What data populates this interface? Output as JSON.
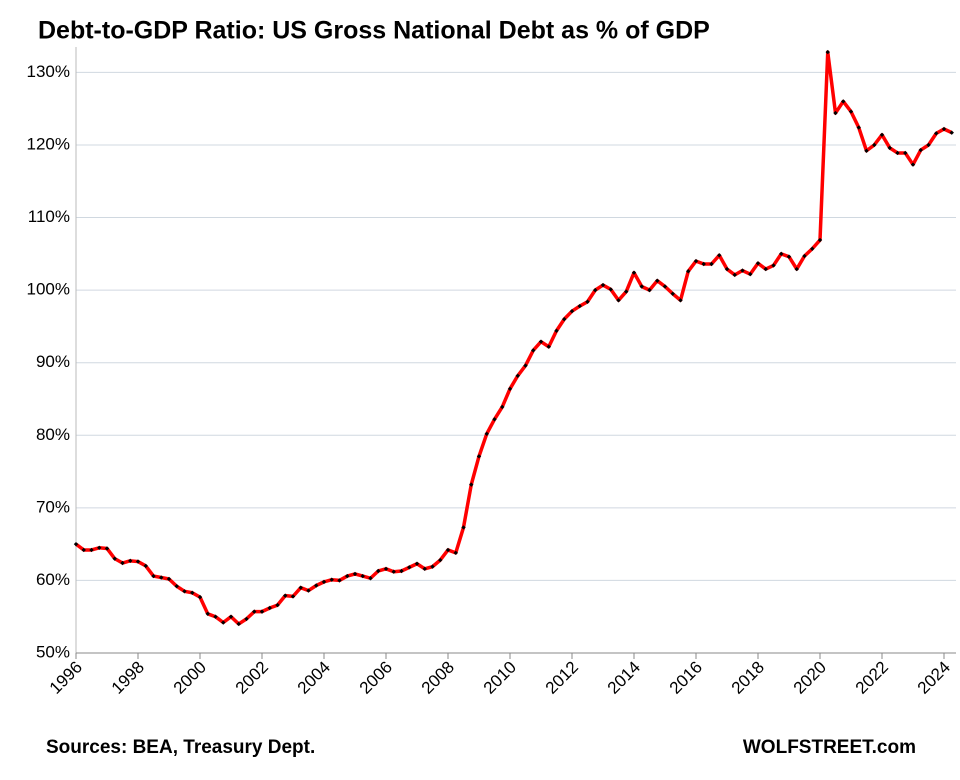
{
  "chart_data": {
    "type": "line",
    "title": "Debt-to-GDP Ratio: US Gross National Debt as % of GDP",
    "source": "Sources: BEA, Treasury Dept.",
    "credit": "WOLFSTREET.com",
    "color": "#ff0000",
    "marker_color": "#000000",
    "grid": true,
    "categories": [
      "1996",
      null,
      null,
      null,
      null,
      null,
      null,
      null,
      "1998",
      null,
      null,
      null,
      null,
      null,
      null,
      null,
      "2000",
      null,
      null,
      null,
      null,
      null,
      null,
      null,
      "2002",
      null,
      null,
      null,
      null,
      null,
      null,
      null,
      "2004",
      null,
      null,
      null,
      null,
      null,
      null,
      null,
      "2006",
      null,
      null,
      null,
      null,
      null,
      null,
      null,
      "2008",
      null,
      null,
      null,
      null,
      null,
      null,
      null,
      "2010",
      null,
      null,
      null,
      null,
      null,
      null,
      null,
      "2012",
      null,
      null,
      null,
      null,
      null,
      null,
      null,
      "2014",
      null,
      null,
      null,
      null,
      null,
      null,
      null,
      "2016",
      null,
      null,
      null,
      null,
      null,
      null,
      null,
      "2018",
      null,
      null,
      null,
      null,
      null,
      null,
      null,
      "2020",
      null,
      null,
      null,
      null,
      null,
      null,
      null,
      "2022",
      null,
      null,
      null,
      null,
      null,
      null,
      null,
      "2024",
      null
    ],
    "values": [
      65.0,
      64.2,
      64.2,
      64.5,
      64.4,
      63.0,
      62.4,
      62.7,
      62.6,
      62.0,
      60.6,
      60.4,
      60.2,
      59.2,
      58.5,
      58.3,
      57.7,
      55.4,
      55.0,
      54.2,
      55.0,
      54.0,
      54.7,
      55.7,
      55.7,
      56.2,
      56.6,
      57.9,
      57.8,
      59.0,
      58.6,
      59.3,
      59.8,
      60.1,
      60.0,
      60.6,
      60.9,
      60.6,
      60.3,
      61.3,
      61.6,
      61.2,
      61.3,
      61.8,
      62.3,
      61.6,
      61.9,
      62.8,
      64.2,
      63.8,
      67.3,
      73.2,
      77.1,
      80.2,
      82.2,
      83.9,
      86.4,
      88.2,
      89.6,
      91.7,
      92.9,
      92.2,
      94.4,
      96.0,
      97.1,
      97.8,
      98.4,
      100.0,
      100.7,
      100.1,
      98.6,
      99.8,
      102.4,
      100.5,
      100.0,
      101.3,
      100.5,
      99.5,
      98.6,
      102.6,
      104.0,
      103.6,
      103.6,
      104.8,
      102.9,
      102.1,
      102.7,
      102.2,
      103.7,
      102.9,
      103.4,
      105.0,
      104.6,
      102.9,
      104.7,
      105.7,
      106.9,
      132.8,
      124.4,
      126.0,
      124.6,
      122.4,
      119.2,
      120.0,
      121.4,
      119.6,
      118.9,
      118.9,
      117.3,
      119.3,
      120.0,
      121.6,
      122.2,
      121.7
    ],
    "ylim": [
      50,
      133.5
    ],
    "yticks": [
      {
        "value": 50,
        "label": "50%"
      },
      {
        "value": 60,
        "label": "60%"
      },
      {
        "value": 70,
        "label": "70%"
      },
      {
        "value": 80,
        "label": "80%"
      },
      {
        "value": 90,
        "label": "90%"
      },
      {
        "value": 100,
        "label": "100%"
      },
      {
        "value": 110,
        "label": "110%"
      },
      {
        "value": 120,
        "label": "120%"
      },
      {
        "value": 130,
        "label": "130%"
      }
    ]
  }
}
